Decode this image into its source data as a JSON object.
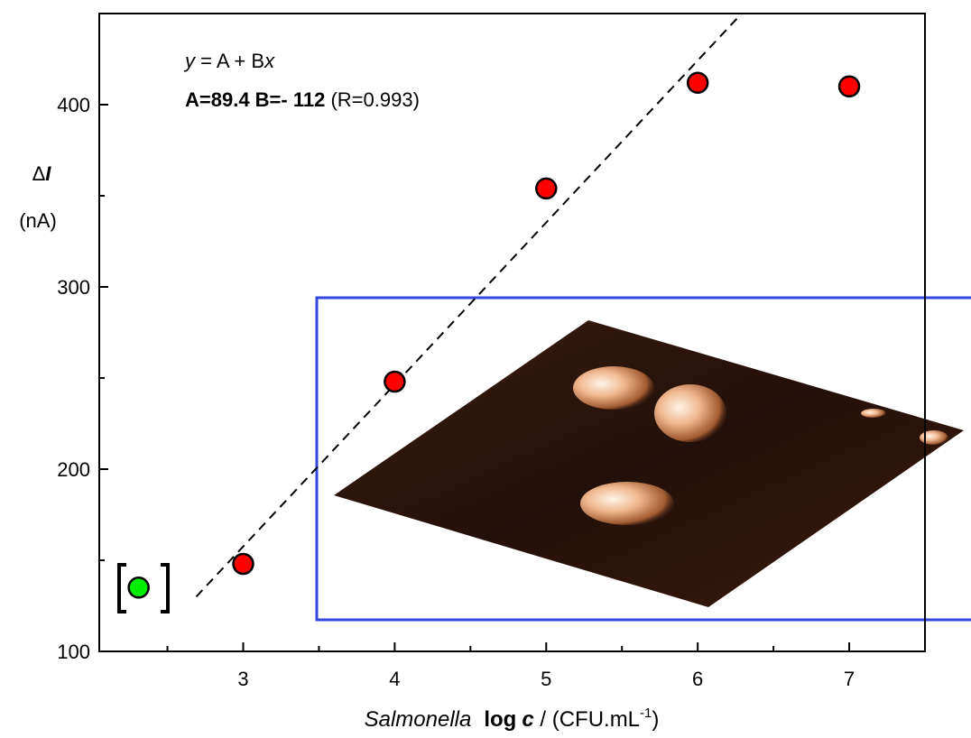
{
  "chart_data": {
    "type": "scatter",
    "equation": {
      "y": "y",
      "mid": " = A + B",
      "x": "x"
    },
    "fit_params": {
      "bold": "A=89.4 B=- 112",
      "r": " (R=0.993)"
    },
    "ylabel": {
      "delta": "Δ",
      "symbol": "I",
      "unit": "(nA)"
    },
    "xlabel": {
      "organism": "Salmonella",
      "log": "log",
      "c": "c",
      "unit": " / (CFU.mL",
      "exp": "-1",
      "close": ")"
    },
    "xlim": [
      2.05,
      7.5
    ],
    "ylim": [
      100,
      450
    ],
    "xticks": [
      3,
      4,
      5,
      6,
      7
    ],
    "yticks": [
      100,
      200,
      300,
      400
    ],
    "xminor": [
      2.5,
      3.5,
      4.5,
      5.5,
      6.5,
      7.5
    ],
    "yminor": [
      150,
      250,
      350
    ],
    "series": [
      {
        "color": "#ff0000",
        "x": [
          3,
          4,
          5,
          6,
          7
        ],
        "values": [
          148,
          248,
          354,
          412,
          410
        ]
      },
      {
        "color": "#00ee00",
        "x": [
          2.31
        ],
        "values": [
          135
        ]
      }
    ],
    "fit": {
      "color": "#000000",
      "x": [
        2.69,
        6.29
      ],
      "values": [
        130,
        450
      ]
    }
  }
}
